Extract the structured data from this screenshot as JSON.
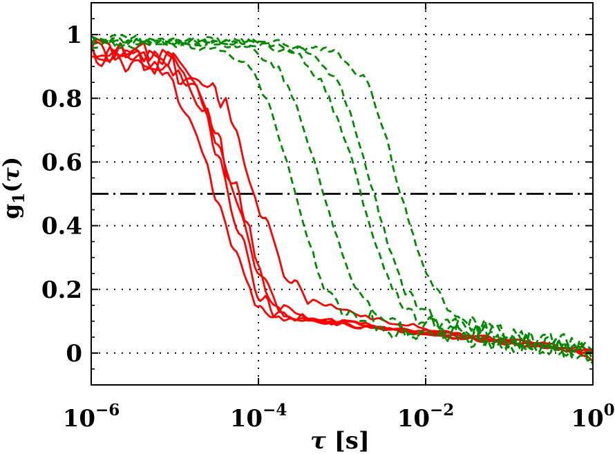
{
  "chart_data": {
    "type": "line",
    "title": "",
    "xlabel": "τ [s]",
    "ylabel": "g1(τ)",
    "xlabel_parts": {
      "symbol": "τ",
      "unit": " [s]"
    },
    "ylabel_parts": {
      "base": "g",
      "sub": "1",
      "open": "(",
      "tau": "τ",
      "close": ")"
    },
    "x_scale": "log",
    "xlim": [
      1e-06,
      1
    ],
    "ylim": [
      -0.1,
      1.1
    ],
    "x_labeled_ticks": [
      {
        "tau": 1e-06,
        "base": "10",
        "exp": "−6"
      },
      {
        "tau": 0.0001,
        "base": "10",
        "exp": "−4"
      },
      {
        "tau": 0.01,
        "base": "10",
        "exp": "−2"
      },
      {
        "tau": 1,
        "base": "10",
        "exp": "0"
      }
    ],
    "y_ticks": [
      {
        "value": 0,
        "label": "0"
      },
      {
        "value": 0.2,
        "label": "0.2"
      },
      {
        "value": 0.4,
        "label": "0.4"
      },
      {
        "value": 0.6,
        "label": "0.6"
      },
      {
        "value": 0.8,
        "label": "0.8"
      },
      {
        "value": 1,
        "label": "1"
      }
    ],
    "y_minor_tick_step": 0.05,
    "grid": {
      "style": "dotted",
      "color": "#000000",
      "x_values": [
        0.0001,
        0.01
      ],
      "y_values": [
        0,
        0.2,
        0.4,
        0.6,
        0.8,
        1
      ]
    },
    "reference_line": {
      "y": 0.5,
      "style": "dash-dot",
      "color": "#000000"
    },
    "colors": {
      "red_series": "#ff0000",
      "green_series": "#008a00",
      "axis": "#000000",
      "background": "#ffffff"
    },
    "legend": "none",
    "series": [
      {
        "name": "red-1",
        "color": "#ff0000",
        "line_style": "solid",
        "half_decay_tau": 3.1e-05,
        "seed": 11,
        "noise": {
          "pre": 0.045,
          "post": 0.008,
          "scale": 0.07
        },
        "points": [
          [
            1e-06,
            0.93
          ],
          [
            2e-06,
            0.92
          ],
          [
            4e-06,
            0.91
          ],
          [
            8e-06,
            0.87
          ],
          [
            1.5e-05,
            0.76
          ],
          [
            2.2e-05,
            0.63
          ],
          [
            3.1e-05,
            0.5
          ],
          [
            4.5e-05,
            0.36
          ],
          [
            7e-05,
            0.21
          ],
          [
            0.0001,
            0.145
          ],
          [
            0.0002,
            0.115
          ],
          [
            0.0005,
            0.1
          ],
          [
            0.0015,
            0.085
          ],
          [
            0.005,
            0.07
          ],
          [
            0.015,
            0.055
          ],
          [
            0.05,
            0.04
          ],
          [
            0.2,
            0.022
          ],
          [
            0.6,
            0.008
          ],
          [
            1,
            -0.02
          ]
        ]
      },
      {
        "name": "red-2",
        "color": "#ff0000",
        "line_style": "solid",
        "half_decay_tau": 4.6e-05,
        "seed": 22,
        "noise": {
          "pre": 0.045,
          "post": 0.008,
          "scale": 0.07
        },
        "points": [
          [
            1e-06,
            0.95
          ],
          [
            2e-06,
            0.94
          ],
          [
            5e-06,
            0.93
          ],
          [
            1e-05,
            0.9
          ],
          [
            1.8e-05,
            0.82
          ],
          [
            2.8e-05,
            0.68
          ],
          [
            3.8e-05,
            0.57
          ],
          [
            4.6e-05,
            0.5
          ],
          [
            6.5e-05,
            0.36
          ],
          [
            0.0001,
            0.19
          ],
          [
            0.00016,
            0.13
          ],
          [
            0.0003,
            0.11
          ],
          [
            0.001,
            0.092
          ],
          [
            0.003,
            0.078
          ],
          [
            0.01,
            0.062
          ],
          [
            0.03,
            0.047
          ],
          [
            0.1,
            0.033
          ],
          [
            0.3,
            0.02
          ],
          [
            1,
            0.0
          ]
        ]
      },
      {
        "name": "red-3",
        "color": "#ff0000",
        "line_style": "solid",
        "half_decay_tau": 5e-05,
        "seed": 33,
        "noise": {
          "pre": 0.045,
          "post": 0.008,
          "scale": 0.07
        },
        "points": [
          [
            1e-06,
            0.96
          ],
          [
            3e-06,
            0.94
          ],
          [
            8e-06,
            0.92
          ],
          [
            1.6e-05,
            0.85
          ],
          [
            2.6e-05,
            0.73
          ],
          [
            4e-05,
            0.58
          ],
          [
            5e-05,
            0.5
          ],
          [
            7e-05,
            0.37
          ],
          [
            0.0001,
            0.24
          ],
          [
            0.00018,
            0.135
          ],
          [
            0.0004,
            0.112
          ],
          [
            0.0012,
            0.095
          ],
          [
            0.004,
            0.08
          ],
          [
            0.012,
            0.065
          ],
          [
            0.04,
            0.05
          ],
          [
            0.15,
            0.035
          ],
          [
            0.5,
            0.015
          ],
          [
            1,
            0.005
          ]
        ]
      },
      {
        "name": "red-4",
        "color": "#ff0000",
        "line_style": "solid",
        "half_decay_tau": 5.5e-05,
        "seed": 44,
        "noise": {
          "pre": 0.045,
          "post": 0.008,
          "scale": 0.07
        },
        "points": [
          [
            1e-06,
            0.94
          ],
          [
            3e-06,
            0.93
          ],
          [
            8e-06,
            0.91
          ],
          [
            1.8e-05,
            0.84
          ],
          [
            3e-05,
            0.7
          ],
          [
            4.4e-05,
            0.57
          ],
          [
            5.5e-05,
            0.5
          ],
          [
            8e-05,
            0.35
          ],
          [
            0.00012,
            0.21
          ],
          [
            0.0002,
            0.125
          ],
          [
            0.0005,
            0.105
          ],
          [
            0.0015,
            0.09
          ],
          [
            0.005,
            0.072
          ],
          [
            0.015,
            0.058
          ],
          [
            0.05,
            0.042
          ],
          [
            0.2,
            0.026
          ],
          [
            1,
            0.0
          ]
        ]
      },
      {
        "name": "red-5",
        "color": "#ff0000",
        "line_style": "solid",
        "half_decay_tau": 9.5e-05,
        "seed": 55,
        "noise": {
          "pre": 0.04,
          "post": 0.008,
          "scale": 0.07
        },
        "points": [
          [
            1e-06,
            0.96
          ],
          [
            4e-06,
            0.95
          ],
          [
            1e-05,
            0.93
          ],
          [
            2e-05,
            0.88
          ],
          [
            4e-05,
            0.78
          ],
          [
            6e-05,
            0.66
          ],
          [
            8e-05,
            0.56
          ],
          [
            9.5e-05,
            0.5
          ],
          [
            0.00015,
            0.35
          ],
          [
            0.00025,
            0.22
          ],
          [
            0.0004,
            0.165
          ],
          [
            0.001,
            0.135
          ],
          [
            0.003,
            0.1
          ],
          [
            0.01,
            0.078
          ],
          [
            0.03,
            0.055
          ],
          [
            0.1,
            0.038
          ],
          [
            0.3,
            0.022
          ],
          [
            1,
            0.01
          ]
        ]
      },
      {
        "name": "green-1",
        "color": "#008a00",
        "line_style": "dashed",
        "half_decay_tau": 0.00028,
        "seed": 66,
        "noise": {
          "pre": 0.013,
          "post": 0.042,
          "scale": 0.05
        },
        "points": [
          [
            1e-06,
            0.97
          ],
          [
            1e-05,
            0.97
          ],
          [
            4e-05,
            0.955
          ],
          [
            8e-05,
            0.89
          ],
          [
            0.00013,
            0.79
          ],
          [
            0.00019,
            0.65
          ],
          [
            0.00028,
            0.5
          ],
          [
            0.0004,
            0.35
          ],
          [
            0.0006,
            0.21
          ],
          [
            0.001,
            0.125
          ],
          [
            0.003,
            0.09
          ],
          [
            0.01,
            0.078
          ],
          [
            0.03,
            0.06
          ],
          [
            0.1,
            0.05
          ],
          [
            0.3,
            0.03
          ],
          [
            1,
            0.0
          ]
        ]
      },
      {
        "name": "green-2",
        "color": "#008a00",
        "line_style": "dashed",
        "half_decay_tau": 0.0006,
        "seed": 77,
        "noise": {
          "pre": 0.013,
          "post": 0.042,
          "scale": 0.05
        },
        "points": [
          [
            1e-06,
            0.98
          ],
          [
            1e-05,
            0.98
          ],
          [
            8e-05,
            0.96
          ],
          [
            0.00018,
            0.89
          ],
          [
            0.0003,
            0.76
          ],
          [
            0.00044,
            0.62
          ],
          [
            0.0006,
            0.5
          ],
          [
            0.0009,
            0.35
          ],
          [
            0.0014,
            0.21
          ],
          [
            0.0025,
            0.12
          ],
          [
            0.006,
            0.085
          ],
          [
            0.02,
            0.065
          ],
          [
            0.06,
            0.05
          ],
          [
            0.2,
            0.032
          ],
          [
            1,
            0.0
          ]
        ]
      },
      {
        "name": "green-3",
        "color": "#008a00",
        "line_style": "dashed",
        "half_decay_tau": 0.0017,
        "seed": 88,
        "noise": {
          "pre": 0.013,
          "post": 0.042,
          "scale": 0.05
        },
        "points": [
          [
            1e-06,
            0.985
          ],
          [
            0.0001,
            0.97
          ],
          [
            0.0003,
            0.935
          ],
          [
            0.0006,
            0.84
          ],
          [
            0.001,
            0.7
          ],
          [
            0.00135,
            0.59
          ],
          [
            0.0017,
            0.5
          ],
          [
            0.0025,
            0.35
          ],
          [
            0.004,
            0.2
          ],
          [
            0.007,
            0.12
          ],
          [
            0.015,
            0.085
          ],
          [
            0.05,
            0.055
          ],
          [
            0.15,
            0.04
          ],
          [
            0.5,
            0.02
          ],
          [
            1,
            -0.01
          ]
        ]
      },
      {
        "name": "green-4",
        "color": "#008a00",
        "line_style": "dashed",
        "half_decay_tau": 0.0024,
        "seed": 99,
        "noise": {
          "pre": 0.013,
          "post": 0.042,
          "scale": 0.05
        },
        "points": [
          [
            1e-06,
            0.98
          ],
          [
            0.0001,
            0.975
          ],
          [
            0.0004,
            0.945
          ],
          [
            0.0009,
            0.85
          ],
          [
            0.0014,
            0.72
          ],
          [
            0.0019,
            0.59
          ],
          [
            0.0024,
            0.5
          ],
          [
            0.0035,
            0.35
          ],
          [
            0.0055,
            0.2
          ],
          [
            0.01,
            0.12
          ],
          [
            0.025,
            0.08
          ],
          [
            0.08,
            0.055
          ],
          [
            0.25,
            0.03
          ],
          [
            1,
            0.0
          ]
        ]
      },
      {
        "name": "green-5",
        "color": "#008a00",
        "line_style": "dashed",
        "half_decay_tau": 0.005,
        "seed": 123,
        "noise": {
          "pre": 0.013,
          "post": 0.042,
          "scale": 0.05
        },
        "points": [
          [
            1e-06,
            0.99
          ],
          [
            0.0001,
            0.98
          ],
          [
            0.0008,
            0.95
          ],
          [
            0.002,
            0.85
          ],
          [
            0.0032,
            0.7
          ],
          [
            0.0042,
            0.58
          ],
          [
            0.005,
            0.5
          ],
          [
            0.0075,
            0.34
          ],
          [
            0.012,
            0.21
          ],
          [
            0.02,
            0.125
          ],
          [
            0.05,
            0.08
          ],
          [
            0.15,
            0.06
          ],
          [
            0.5,
            0.025
          ],
          [
            1,
            0.0
          ]
        ]
      }
    ]
  }
}
